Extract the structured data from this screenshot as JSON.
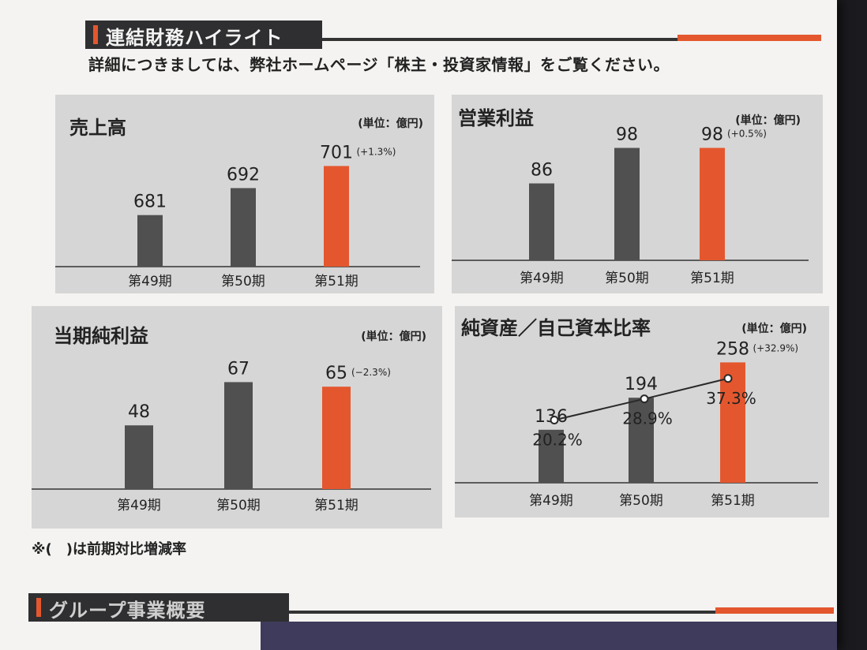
{
  "header": {
    "title": "連結財務ハイライト"
  },
  "intro": "詳細につきましては、弊社ホームページ「株主・投資家情報」をご覧ください。",
  "footnote": "※(　)は前期対比増減率",
  "next_section": {
    "title": "グループ事業概要"
  },
  "colors": {
    "bar_dark": "#505050",
    "bar_accent": "#e4572e",
    "panel_bg": "#d6d6d6",
    "line": "#2a2a2a"
  },
  "panels": [
    {
      "title": "売上高",
      "unit": "(単位：億円)"
    },
    {
      "title": "営業利益",
      "unit": "(単位：億円)"
    },
    {
      "title": "当期純利益",
      "unit": "(単位：億円)"
    },
    {
      "title": "純資産／自己資本比率",
      "unit": "(単位：億円)"
    }
  ],
  "chart_data": [
    {
      "type": "bar",
      "title": "売上高",
      "categories": [
        "第49期",
        "第50期",
        "第51期"
      ],
      "values": [
        681,
        692,
        701
      ],
      "value_labels": [
        "681",
        "692",
        "701"
      ],
      "change": [
        "",
        "",
        "(+1.3%)"
      ]
    },
    {
      "type": "bar",
      "title": "営業利益",
      "categories": [
        "第49期",
        "第50期",
        "第51期"
      ],
      "values": [
        86,
        98,
        98
      ],
      "value_labels": [
        "86",
        "98",
        "98"
      ],
      "change": [
        "",
        "",
        "(+0.5%)"
      ]
    },
    {
      "type": "bar",
      "title": "当期純利益",
      "categories": [
        "第49期",
        "第50期",
        "第51期"
      ],
      "values": [
        48,
        67,
        65
      ],
      "value_labels": [
        "48",
        "67",
        "65"
      ],
      "change": [
        "",
        "",
        "(−2.3%)"
      ]
    },
    {
      "type": "bar",
      "title": "純資産／自己資本比率",
      "categories": [
        "第49期",
        "第50期",
        "第51期"
      ],
      "values": [
        136,
        194,
        258
      ],
      "value_labels": [
        "136",
        "194",
        "258"
      ],
      "change": [
        "",
        "",
        "(+32.9%)"
      ],
      "line_series": {
        "values": [
          20.2,
          28.9,
          37.3
        ],
        "labels": [
          "20.2%",
          "28.9%",
          "37.3%"
        ]
      }
    }
  ]
}
